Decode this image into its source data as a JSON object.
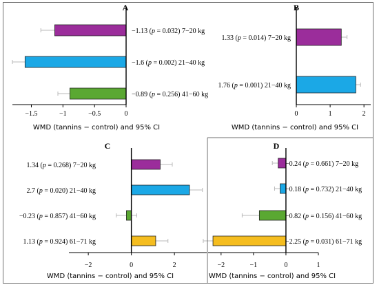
{
  "chart_data": [
    {
      "type": "bar",
      "orientation": "horizontal",
      "panel": "A",
      "xlabel": "WMD (tannins − control) and 95% CI",
      "xlim": [
        -1.8,
        0
      ],
      "xticks": [
        "-1.5",
        "-1",
        "-0.5",
        "0"
      ],
      "categories": [
        "7−20 kg",
        "21−40 kg",
        "41−60 kg"
      ],
      "values": [
        -1.13,
        -1.6,
        -0.89
      ],
      "ci_low": [
        -1.35,
        -1.8,
        -1.08
      ],
      "ci_high": [
        -0.91,
        -1.4,
        -0.7
      ],
      "colors": [
        "#9b2d9b",
        "#1ba8e6",
        "#5aa832"
      ],
      "labels": [
        "−1.13 (p = 0.032) 7−20 kg",
        "−1.6 (p = 0.002) 21−40 kg",
        "−0.89 (p = 0.256) 41−60 kg"
      ],
      "grid": false
    },
    {
      "type": "bar",
      "orientation": "horizontal",
      "panel": "B",
      "xlabel": "WMD (tannins − control) and 95% CI",
      "xlim": [
        0,
        2.2
      ],
      "xticks": [
        "0",
        "1",
        "2"
      ],
      "categories": [
        "7−20 kg",
        "21−40 kg"
      ],
      "values": [
        1.33,
        1.76
      ],
      "ci_low": [
        1.15,
        1.6
      ],
      "ci_high": [
        1.5,
        1.9
      ],
      "colors": [
        "#9b2d9b",
        "#1ba8e6"
      ],
      "labels": [
        "1.33 (p = 0.014) 7−20 kg",
        "1.76 (p = 0.001) 21−40 kg"
      ],
      "grid": false
    },
    {
      "type": "bar",
      "orientation": "horizontal",
      "panel": "C",
      "xlabel": "WMD (tannins − control) and 95% CI",
      "xlim": [
        -2.9,
        3.5
      ],
      "xticks": [
        "-2",
        "0",
        "2"
      ],
      "categories": [
        "7−20 kg",
        "21−40 kg",
        "41−60 kg",
        "61−71 kg"
      ],
      "values": [
        1.34,
        2.7,
        -0.23,
        1.13
      ],
      "ci_low": [
        0.8,
        2.1,
        -0.7,
        0.55
      ],
      "ci_high": [
        1.9,
        3.3,
        0.25,
        1.7
      ],
      "colors": [
        "#9b2d9b",
        "#1ba8e6",
        "#5aa832",
        "#f5bd1f"
      ],
      "labels": [
        "1.34 (p = 0.268) 7−20 kg",
        "2.7 (p = 0.020) 21−40 kg",
        "−0.23 (p = 0.857) 41−60 kg",
        "1.13 (p = 0.924) 61−71 kg"
      ],
      "grid": false
    },
    {
      "type": "bar",
      "orientation": "horizontal",
      "panel": "D",
      "xlabel": "WMD (tannins − control) and 95% CI",
      "xlim": [
        -2.4,
        1.0
      ],
      "xticks": [
        "-2",
        "-1",
        "0",
        "1"
      ],
      "categories": [
        "7−20 kg",
        "21−40 kg",
        "41−60 kg",
        "61−71 kg"
      ],
      "values": [
        -0.24,
        -0.18,
        -0.82,
        -2.25
      ],
      "ci_low": [
        -0.42,
        -0.35,
        -1.35,
        -2.55
      ],
      "ci_high": [
        -0.06,
        0.0,
        -0.3,
        -1.5
      ],
      "colors": [
        "#9b2d9b",
        "#1ba8e6",
        "#5aa832",
        "#f5bd1f"
      ],
      "labels": [
        "−0.24 (p = 0.661) 7−20 kg",
        "−0.18 (p = 0.732) 21−40 kg",
        "−0.82 (p = 0.156) 41−60 kg",
        "−2.25 (p = 0.031) 61−71 kg"
      ],
      "grid": false
    }
  ]
}
